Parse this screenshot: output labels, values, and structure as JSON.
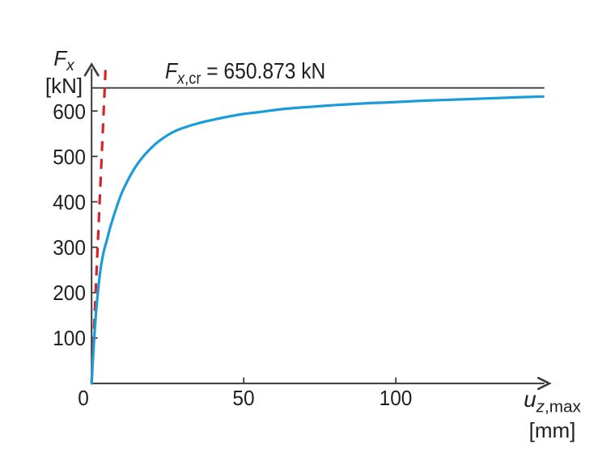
{
  "chart_data": {
    "type": "line",
    "title": "",
    "xlabel": "u_z,max [mm]",
    "ylabel": "F_x [kN]",
    "xlim": [
      0,
      150.9
    ],
    "ylim": [
      0,
      703
    ],
    "grid": false,
    "legend": "none",
    "x_ticks": [
      0,
      50,
      100
    ],
    "y_ticks": [
      100,
      200,
      300,
      400,
      500,
      600
    ],
    "critical_load_kN": 650.873,
    "annotation_text": "F_x,cr = 650.873 kN",
    "series": [
      {
        "name": "nonlinear load-deflection curve",
        "style": "solid",
        "color": "#1b9cd9",
        "points": [
          [
            0,
            0
          ],
          [
            0.45,
            55
          ],
          [
            0.9,
            105
          ],
          [
            1.4,
            152
          ],
          [
            2.0,
            196
          ],
          [
            2.9,
            250
          ],
          [
            3.9,
            288
          ],
          [
            5.0,
            315
          ],
          [
            6.0,
            341
          ],
          [
            7.0,
            363
          ],
          [
            8.1,
            386
          ],
          [
            9.7,
            416
          ],
          [
            11.5,
            442
          ],
          [
            13.6,
            468
          ],
          [
            15.9,
            491
          ],
          [
            18.6,
            512
          ],
          [
            22.2,
            534
          ],
          [
            27.5,
            556
          ],
          [
            34.5,
            572
          ],
          [
            41.5,
            583
          ],
          [
            48.5,
            592
          ],
          [
            55.5,
            598
          ],
          [
            62.5,
            604
          ],
          [
            69.5,
            608
          ],
          [
            80,
            613
          ],
          [
            90,
            617
          ],
          [
            97.6,
            619
          ],
          [
            110,
            623
          ],
          [
            123.3,
            626
          ],
          [
            135,
            629
          ],
          [
            148.4,
            632
          ]
        ]
      },
      {
        "name": "linear solution",
        "style": "dashed",
        "color": "#d7232b",
        "points": [
          [
            0,
            0
          ],
          [
            4.57,
            690.4
          ]
        ]
      },
      {
        "name": "critical load",
        "style": "solid",
        "color": "#3f3f3f",
        "points": [
          [
            0,
            650.873
          ],
          [
            148.8,
            650.873
          ]
        ]
      }
    ]
  },
  "labels": {
    "y_symbol": "F",
    "y_sub": "x",
    "y_unit": "[kN]",
    "x_symbol": "u",
    "x_sub_italic": "z",
    "x_sub_rest": ",max",
    "x_unit": "[mm]",
    "annotation_symbol": "F",
    "annotation_sub_italic": "x",
    "annotation_sub_rest": ",cr",
    "annotation_value": " = 650.873 kN"
  },
  "ticks": {
    "x": [
      "0",
      "50",
      "100"
    ],
    "y": [
      "100",
      "200",
      "300",
      "400",
      "500",
      "600"
    ]
  },
  "colors": {
    "axis": "#3a3a3a",
    "critical_line": "#3f3f3f",
    "curve": "#1b9cd9",
    "linear": "#d7232b",
    "text": "#1f1f1f",
    "background": "#ffffff"
  }
}
